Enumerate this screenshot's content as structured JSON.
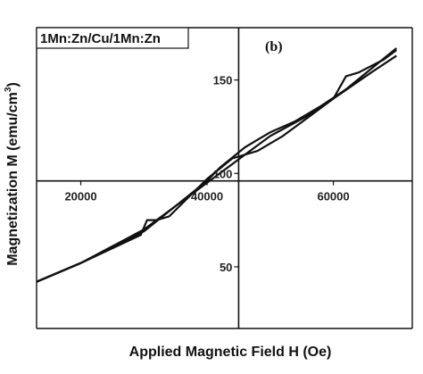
{
  "chart_data": {
    "type": "line",
    "legend": "1Mn:Zn/Cu/1Mn:Zn",
    "panel_label": "(b)",
    "xlabel": "Applied Magnetic Field H (Oe)",
    "ylabel_main": "Magnetization M (emu/cm",
    "ylabel_sup": "3",
    "ylabel_end": ")",
    "xlim": [
      13000,
      72500
    ],
    "ylim": [
      17000,
      178000
    ],
    "x_ticks": [
      {
        "value": 20000,
        "label": "20000"
      },
      {
        "value": 40000,
        "label": "40000"
      },
      {
        "value": 60000,
        "label": "60000"
      }
    ],
    "y_ticks": [
      {
        "value": 50000,
        "label": "50"
      },
      {
        "value": 100000,
        "label": "100"
      },
      {
        "value": 150000,
        "label": "150"
      }
    ],
    "grid": false,
    "series": [
      {
        "x": [
          13000,
          20000,
          30000,
          38000,
          42000,
          46000,
          50000,
          56000,
          60000,
          66000,
          70000
        ],
        "y": [
          42000,
          52000,
          70000,
          90000,
          100000,
          110000,
          120000,
          131000,
          140000,
          154000,
          163000
        ]
      },
      {
        "x": [
          13000,
          20000,
          29500,
          30500,
          32000,
          34000,
          40000,
          44000,
          48000,
          52000,
          56000,
          60000,
          62000,
          64000,
          68000,
          70000
        ],
        "y": [
          42000,
          52000,
          67000,
          75000,
          75000,
          77000,
          97000,
          108000,
          112000,
          120000,
          130000,
          140000,
          152000,
          154000,
          161000,
          166000
        ]
      },
      {
        "x": [
          13000,
          20000,
          30000,
          40000,
          42000,
          46000,
          50000,
          54000,
          58000,
          62000,
          66000,
          70000
        ],
        "y": [
          42000,
          52000,
          69000,
          96000,
          103000,
          114000,
          122000,
          128000,
          136000,
          145000,
          156000,
          167000
        ]
      }
    ]
  }
}
